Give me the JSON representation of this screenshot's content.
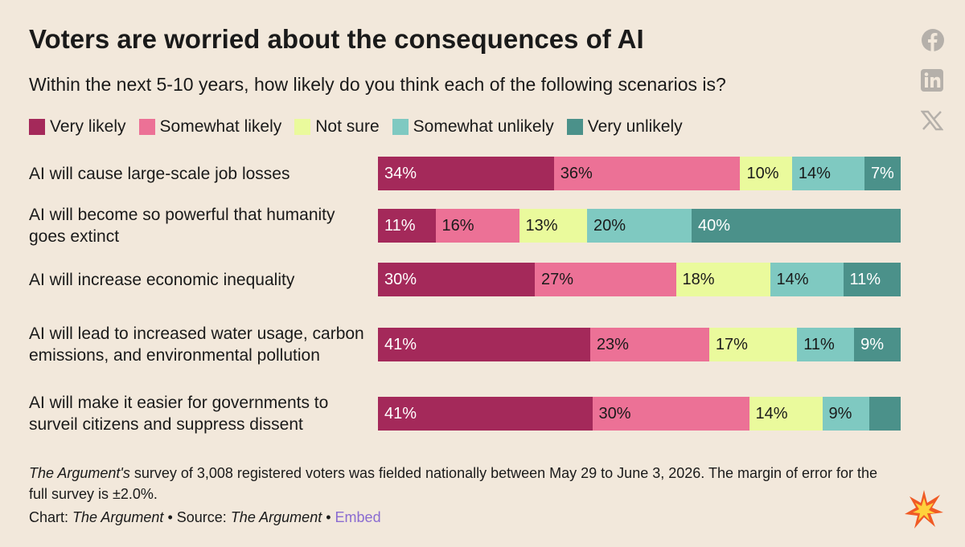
{
  "chart_data": {
    "type": "stacked-bar-horizontal",
    "title": "Voters are worried about the consequences of AI",
    "subtitle": "Within the next 5-10 years, how likely do you think each of the following scenarios is?",
    "categories": [
      "AI will cause large-scale job losses",
      "AI will become so powerful that humanity goes extinct",
      "AI will increase economic inequality",
      "AI will lead to increased water usage, carbon emissions, and environmental pollution",
      "AI will make it easier for governments to surveil citizens and suppress dissent"
    ],
    "series": [
      {
        "name": "Very likely",
        "color": "#a4295a",
        "values": [
          34,
          11,
          30,
          41,
          41
        ],
        "value_labels": [
          "34%",
          "11%",
          "30%",
          "41%",
          "41%"
        ]
      },
      {
        "name": "Somewhat likely",
        "color": "#ec7196",
        "values": [
          36,
          16,
          27,
          23,
          30
        ],
        "value_labels": [
          "36%",
          "16%",
          "27%",
          "23%",
          "30%"
        ]
      },
      {
        "name": "Not sure",
        "color": "#eafa9c",
        "values": [
          10,
          13,
          18,
          17,
          14
        ],
        "value_labels": [
          "10%",
          "13%",
          "18%",
          "17%",
          "14%"
        ]
      },
      {
        "name": "Somewhat unlikely",
        "color": "#7fc9c1",
        "values": [
          14,
          20,
          14,
          11,
          9
        ],
        "value_labels": [
          "14%",
          "20%",
          "14%",
          "11%",
          "9%"
        ]
      },
      {
        "name": "Very unlikely",
        "color": "#4b918a",
        "values": [
          7,
          40,
          11,
          9,
          6
        ],
        "value_labels": [
          "7%",
          "40%",
          "11%",
          "9%",
          null
        ]
      }
    ],
    "notes": [
      "The Argument's",
      "survey of 3,008 registered voters was fielded nationally between May 29 to June 3, 2026. The margin of error for the full survey is ±2.0%."
    ],
    "credit": {
      "chart_label": "Chart:",
      "chart_by": "The Argument",
      "source_label": "• Source:",
      "source": "The Argument",
      "separator": "•",
      "embed": "Embed"
    }
  }
}
